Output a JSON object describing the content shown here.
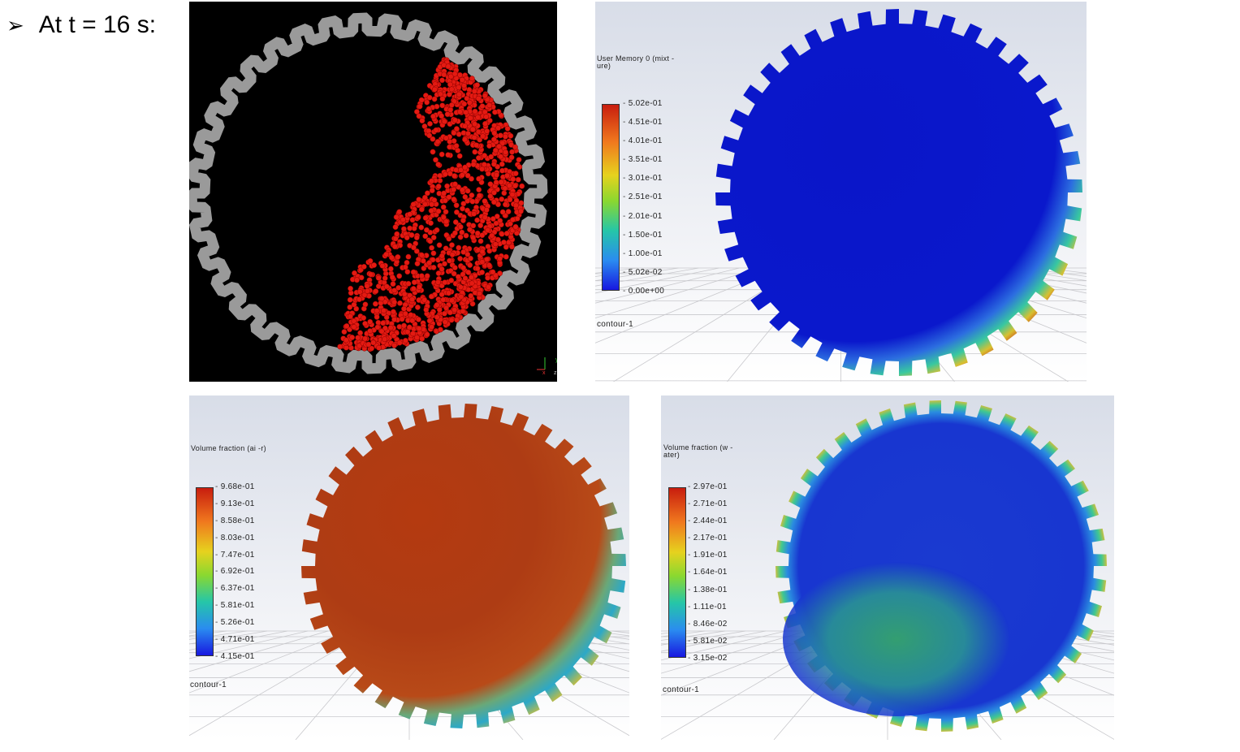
{
  "heading": {
    "bullet_icon": "arrow-bullet",
    "text": "At t = 16 s:"
  },
  "panels": {
    "particles": {
      "axis_labels": {
        "x": "x",
        "y": "y",
        "z": "z"
      },
      "colors": {
        "background": "#000000",
        "particles": "#e01010",
        "wall": "#9a9a9a"
      }
    },
    "user_memory": {
      "title": "User Memory 0 (mixt -ure)",
      "ticks": [
        "5.02e-01",
        "4.51e-01",
        "4.01e-01",
        "3.51e-01",
        "3.01e-01",
        "2.51e-01",
        "2.01e-01",
        "1.50e-01",
        "1.00e-01",
        "5.02e-02",
        "0.00e+00"
      ],
      "label": "contour-1"
    },
    "vf_air": {
      "title": "Volume fraction (ai -r)",
      "ticks": [
        "9.68e-01",
        "9.13e-01",
        "8.58e-01",
        "8.03e-01",
        "7.47e-01",
        "6.92e-01",
        "6.37e-01",
        "5.81e-01",
        "5.26e-01",
        "4.71e-01",
        "4.15e-01"
      ],
      "label": "contour-1"
    },
    "vf_water": {
      "title": "Volume fraction (w -ater)",
      "ticks": [
        "2.97e-01",
        "2.71e-01",
        "2.44e-01",
        "2.17e-01",
        "1.91e-01",
        "1.64e-01",
        "1.38e-01",
        "1.11e-01",
        "8.46e-02",
        "5.81e-02",
        "3.15e-02"
      ],
      "label": "contour-1"
    }
  }
}
